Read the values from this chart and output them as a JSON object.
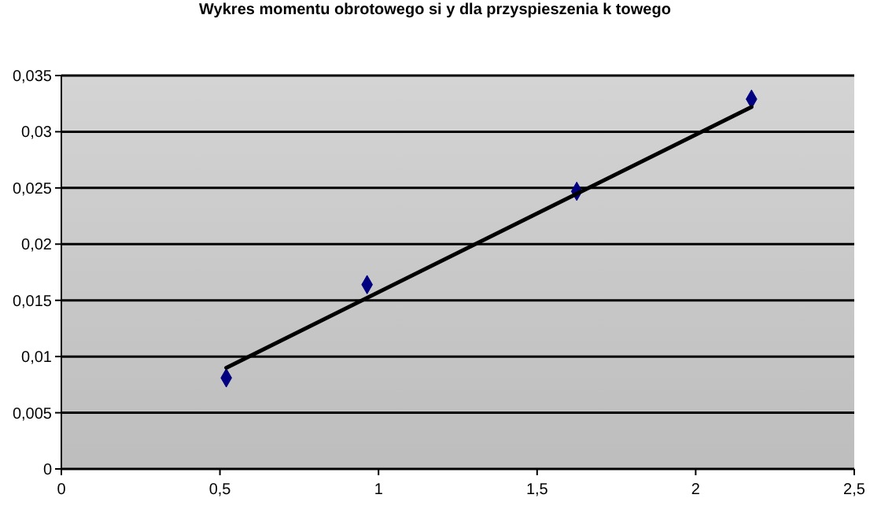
{
  "chart_data": {
    "type": "scatter",
    "title": "Wykres momentu obrotowego si y dla przyspieszenia k  towego",
    "series": [
      {
        "color": "#000080",
        "x": [
          0.52,
          0.964,
          1.625,
          2.176
        ],
        "values": [
          0.0081,
          0.0164,
          0.0247,
          0.0329
        ],
        "marker": "diamond"
      },
      {
        "type": "line",
        "color": "#000000",
        "x": [
          0.52,
          2.176
        ],
        "values": [
          0.009,
          0.0322
        ],
        "marker": "none"
      }
    ],
    "xlim": [
      0,
      2.5
    ],
    "xticks": [
      {
        "value": 0,
        "label": "0"
      },
      {
        "value": 0.5,
        "label": "0,5"
      },
      {
        "value": 1,
        "label": "1"
      },
      {
        "value": 1.5,
        "label": "1,5"
      },
      {
        "value": 2,
        "label": "2"
      },
      {
        "value": 2.5,
        "label": "2,5"
      }
    ],
    "ylim": [
      0,
      0.035
    ],
    "yticks": [
      {
        "value": 0,
        "label": "0"
      },
      {
        "value": 0.005,
        "label": "0,005"
      },
      {
        "value": 0.01,
        "label": "0,01"
      },
      {
        "value": 0.015,
        "label": "0,015"
      },
      {
        "value": 0.02,
        "label": "0,02"
      },
      {
        "value": 0.025,
        "label": "0,025"
      },
      {
        "value": 0.03,
        "label": "0,03"
      },
      {
        "value": 0.035,
        "label": "0,035"
      }
    ],
    "grid": "y"
  }
}
